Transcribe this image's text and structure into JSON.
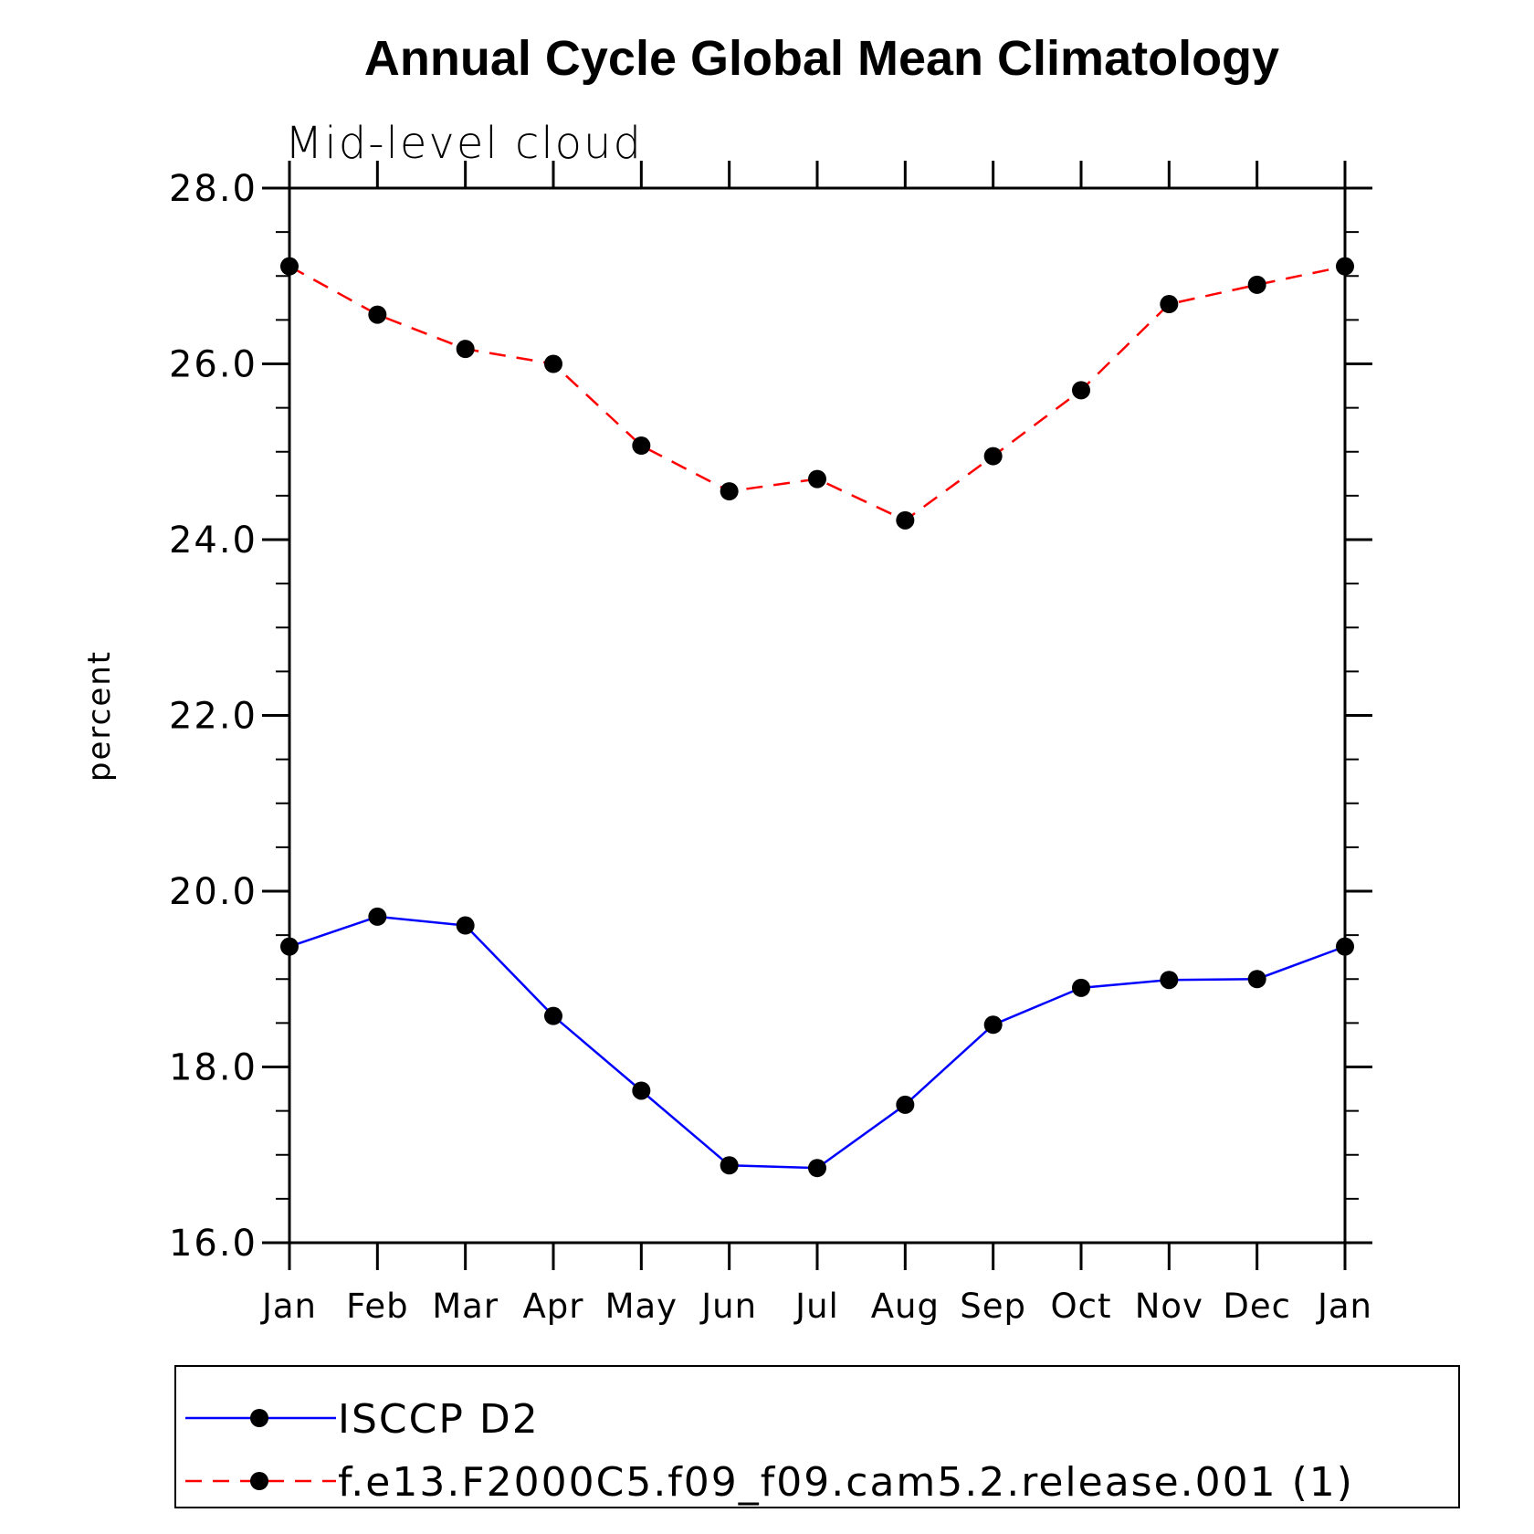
{
  "chart_data": {
    "type": "line",
    "title": "Annual Cycle Global Mean Climatology",
    "subtitle": "Mid-level cloud",
    "xlabel": "",
    "ylabel": "percent",
    "categories": [
      "Jan",
      "Feb",
      "Mar",
      "Apr",
      "May",
      "Jun",
      "Jul",
      "Aug",
      "Sep",
      "Oct",
      "Nov",
      "Dec",
      "Jan"
    ],
    "ylim": [
      16.0,
      28.0
    ],
    "yticks": [
      "16.0",
      "18.0",
      "20.0",
      "22.0",
      "24.0",
      "26.0",
      "28.0"
    ],
    "grid": false,
    "legend_position": "bottom",
    "series": [
      {
        "name": "ISCCP D2",
        "color": "#0000ff",
        "line_style": "solid",
        "marker": "filled-circle",
        "values": [
          19.37,
          19.71,
          19.61,
          18.58,
          17.73,
          16.88,
          16.85,
          17.57,
          18.48,
          18.9,
          18.99,
          19.0,
          19.37
        ]
      },
      {
        "name": "f.e13.F2000C5.f09_f09.cam5.2.release.001 (1)",
        "color": "#ff0000",
        "line_style": "dashed",
        "marker": "filled-circle",
        "values": [
          27.11,
          26.56,
          26.17,
          26.0,
          25.07,
          24.55,
          24.69,
          24.22,
          24.95,
          25.7,
          26.68,
          26.9,
          27.11
        ]
      }
    ]
  }
}
